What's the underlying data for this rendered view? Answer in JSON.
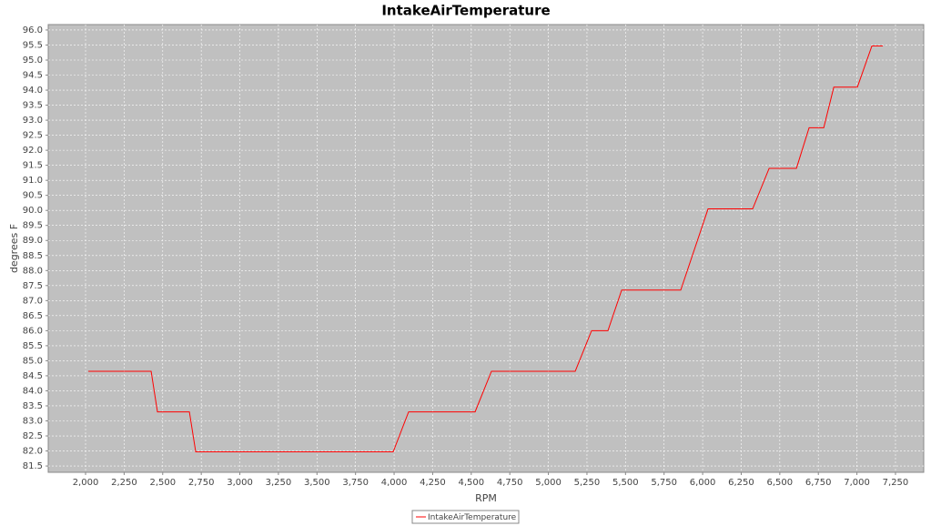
{
  "chart_data": {
    "type": "line",
    "title": "IntakeAirTemperature",
    "x_label": "RPM",
    "y_label": "degrees F",
    "x": [
      2018,
      2425,
      2466,
      2673,
      2714,
      3994,
      4094,
      4525,
      4631,
      5174,
      5280,
      5386,
      5475,
      5858,
      6035,
      6324,
      6431,
      6608,
      6690,
      6785,
      6850,
      7003,
      7097,
      7168
    ],
    "series": [
      {
        "name": "IntakeAirTemperature",
        "color": "#ff0000",
        "values": [
          84.65,
          84.65,
          83.3,
          83.3,
          81.97,
          81.97,
          83.3,
          83.3,
          84.65,
          84.65,
          86.0,
          86.0,
          87.35,
          87.35,
          90.05,
          90.05,
          91.4,
          91.4,
          92.75,
          92.75,
          94.1,
          94.1,
          95.47,
          95.47
        ]
      }
    ],
    "xlim": [
      1758,
      7433
    ],
    "ylim": [
      81.29,
      96.18
    ],
    "xticks": [
      {
        "value": 2000,
        "label": "2,000"
      },
      {
        "value": 2250,
        "label": "2,250"
      },
      {
        "value": 2500,
        "label": "2,500"
      },
      {
        "value": 2750,
        "label": "2,750"
      },
      {
        "value": 3000,
        "label": "3,000"
      },
      {
        "value": 3250,
        "label": "3,250"
      },
      {
        "value": 3500,
        "label": "3,500"
      },
      {
        "value": 3750,
        "label": "3,750"
      },
      {
        "value": 4000,
        "label": "4,000"
      },
      {
        "value": 4250,
        "label": "4,250"
      },
      {
        "value": 4500,
        "label": "4,500"
      },
      {
        "value": 4750,
        "label": "4,750"
      },
      {
        "value": 5000,
        "label": "5,000"
      },
      {
        "value": 5250,
        "label": "5,250"
      },
      {
        "value": 5500,
        "label": "5,500"
      },
      {
        "value": 5750,
        "label": "5,750"
      },
      {
        "value": 6000,
        "label": "6,000"
      },
      {
        "value": 6250,
        "label": "6,250"
      },
      {
        "value": 6500,
        "label": "6,500"
      },
      {
        "value": 6750,
        "label": "6,750"
      },
      {
        "value": 7000,
        "label": "7,000"
      },
      {
        "value": 7250,
        "label": "7,250"
      }
    ],
    "yticks": [
      {
        "value": 81.5,
        "label": "81.5"
      },
      {
        "value": 82,
        "label": "82.0"
      },
      {
        "value": 82.5,
        "label": "82.5"
      },
      {
        "value": 83,
        "label": "83.0"
      },
      {
        "value": 83.5,
        "label": "83.5"
      },
      {
        "value": 84,
        "label": "84.0"
      },
      {
        "value": 84.5,
        "label": "84.5"
      },
      {
        "value": 85,
        "label": "85.0"
      },
      {
        "value": 85.5,
        "label": "85.5"
      },
      {
        "value": 86,
        "label": "86.0"
      },
      {
        "value": 86.5,
        "label": "86.5"
      },
      {
        "value": 87,
        "label": "87.0"
      },
      {
        "value": 87.5,
        "label": "87.5"
      },
      {
        "value": 88,
        "label": "88.0"
      },
      {
        "value": 88.5,
        "label": "88.5"
      },
      {
        "value": 89,
        "label": "89.0"
      },
      {
        "value": 89.5,
        "label": "89.5"
      },
      {
        "value": 90,
        "label": "90.0"
      },
      {
        "value": 90.5,
        "label": "90.5"
      },
      {
        "value": 91,
        "label": "91.0"
      },
      {
        "value": 91.5,
        "label": "91.5"
      },
      {
        "value": 92,
        "label": "92.0"
      },
      {
        "value": 92.5,
        "label": "92.5"
      },
      {
        "value": 93,
        "label": "93.0"
      },
      {
        "value": 93.5,
        "label": "93.5"
      },
      {
        "value": 94,
        "label": "94.0"
      },
      {
        "value": 94.5,
        "label": "94.5"
      },
      {
        "value": 95,
        "label": "95.0"
      },
      {
        "value": 95.5,
        "label": "95.5"
      },
      {
        "value": 96,
        "label": "96.0"
      }
    ],
    "grid": true,
    "legend": "bottom",
    "plot_background": "#c0c0c0"
  }
}
